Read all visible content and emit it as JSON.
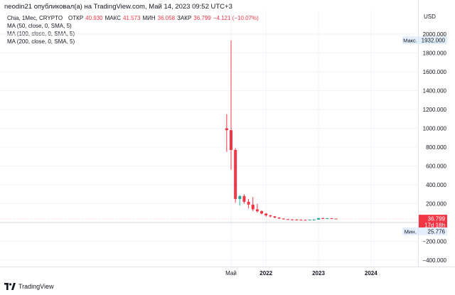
{
  "header": {
    "published_line": "neodin21 опубликовал(а) на TradingView.com, Май 14, 2023 09:52 UTC+3"
  },
  "legend": {
    "symbol": "Chia, 1Мес, CRYPTO",
    "open_label": "ОТКР",
    "open_value": "40.930",
    "high_label": "МАКС",
    "high_value": "41.573",
    "low_label": "МИН",
    "low_value": "36.058",
    "close_label": "ЗАКР",
    "close_value": "36.799",
    "change": "−4.121 (−10.07%)",
    "indicators": [
      "MA (50, close, 0, SMA, 5)",
      "MA (100, close, 0, SMA, 5)",
      "MA (200, close, 0, SMA, 5)"
    ]
  },
  "footer": {
    "brand": "TradingView"
  },
  "colors": {
    "up": "#26a69a",
    "down": "#f23645",
    "grid": "#f0f3fa",
    "axis_text": "#131722",
    "badge_bg": "#e3effd"
  },
  "chart_data": {
    "type": "candlestick",
    "currency": "USD",
    "x_ticks": [
      "Май",
      "2022",
      "2023",
      "2024"
    ],
    "y_ticks": [
      2000,
      1800,
      1600,
      1400,
      1200,
      1000,
      800,
      600,
      400,
      200,
      0,
      -200,
      -400
    ],
    "y_tick_labels": [
      "2000.000",
      "1800.000",
      "1600.000",
      "1400.000",
      "1200.000",
      "1000.000",
      "800.000",
      "600.000",
      "400.000",
      "200.000",
      "",
      "−200.000",
      "−400.000"
    ],
    "ylim": [
      -430,
      2110
    ],
    "max_label": "Макс.",
    "max_value": "1932.000",
    "min_label": "Мин.",
    "min_value": "25.776",
    "last_price": "36.799",
    "countdown": "17d 18h",
    "months": [
      "2021-04",
      "2021-05",
      "2021-06",
      "2021-07",
      "2021-08",
      "2021-09",
      "2021-10",
      "2021-11",
      "2021-12",
      "2022-01",
      "2022-02",
      "2022-03",
      "2022-04",
      "2022-05",
      "2022-06",
      "2022-07",
      "2022-08",
      "2022-09",
      "2022-10",
      "2022-11",
      "2022-12",
      "2023-01",
      "2023-02",
      "2023-03",
      "2023-04",
      "2023-05"
    ],
    "candles": [
      {
        "o": 1000,
        "h": 1150,
        "l": 750,
        "c": 980
      },
      {
        "o": 980,
        "h": 1932,
        "l": 560,
        "c": 770
      },
      {
        "o": 770,
        "h": 790,
        "l": 210,
        "c": 250
      },
      {
        "o": 250,
        "h": 290,
        "l": 180,
        "c": 280
      },
      {
        "o": 280,
        "h": 300,
        "l": 200,
        "c": 220
      },
      {
        "o": 220,
        "h": 250,
        "l": 150,
        "c": 190
      },
      {
        "o": 190,
        "h": 270,
        "l": 120,
        "c": 140
      },
      {
        "o": 140,
        "h": 200,
        "l": 105,
        "c": 120
      },
      {
        "o": 120,
        "h": 130,
        "l": 85,
        "c": 95
      },
      {
        "o": 95,
        "h": 100,
        "l": 60,
        "c": 75
      },
      {
        "o": 75,
        "h": 82,
        "l": 55,
        "c": 65
      },
      {
        "o": 65,
        "h": 70,
        "l": 45,
        "c": 52
      },
      {
        "o": 52,
        "h": 57,
        "l": 38,
        "c": 42
      },
      {
        "o": 42,
        "h": 45,
        "l": 30,
        "c": 35
      },
      {
        "o": 35,
        "h": 38,
        "l": 28,
        "c": 32
      },
      {
        "o": 32,
        "h": 36,
        "l": 27,
        "c": 30
      },
      {
        "o": 30,
        "h": 34,
        "l": 26,
        "c": 29
      },
      {
        "o": 29,
        "h": 32,
        "l": 26,
        "c": 28
      },
      {
        "o": 28,
        "h": 30,
        "l": 25.776,
        "c": 27
      },
      {
        "o": 27,
        "h": 31,
        "l": 26,
        "c": 30
      },
      {
        "o": 30,
        "h": 33,
        "l": 28,
        "c": 31
      },
      {
        "o": 31,
        "h": 50,
        "l": 30,
        "c": 46
      },
      {
        "o": 46,
        "h": 52,
        "l": 38,
        "c": 41
      },
      {
        "o": 41,
        "h": 48,
        "l": 36,
        "c": 45
      },
      {
        "o": 45,
        "h": 47,
        "l": 40,
        "c": 40.93
      },
      {
        "o": 40.93,
        "h": 41.573,
        "l": 36.058,
        "c": 36.799
      }
    ]
  }
}
